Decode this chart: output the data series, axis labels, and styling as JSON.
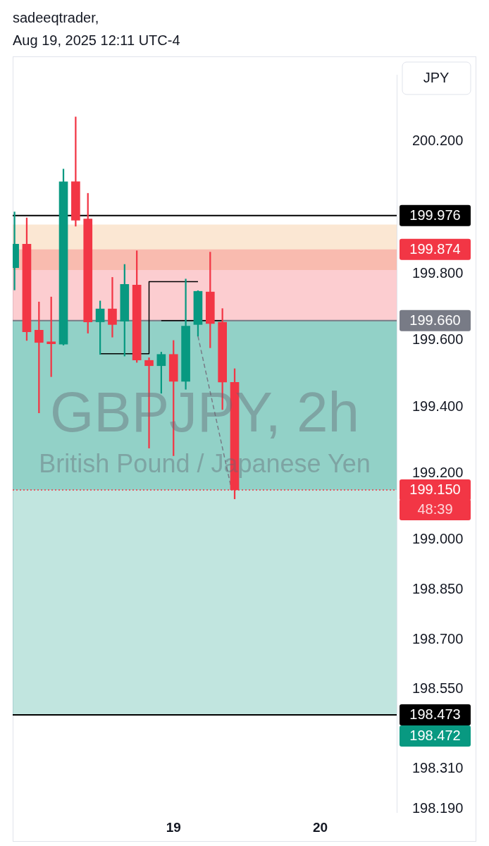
{
  "chart_data": {
    "type": "candlestick",
    "title": "GBPJPY, 2h",
    "subtitle": "British Pound / Japanese Yen",
    "ylabel": "JPY",
    "annotations": [
      "sadeeqtrader,",
      "Aug 19, 2025 12:11 UTC-4",
      "48:39"
    ],
    "marker": "none",
    "xlim": [
      "2025-08-17T21:42",
      "2025-08-20T12:30"
    ],
    "xticks": [
      {
        "value": "2025-08-19",
        "label": "19"
      },
      {
        "value": "2025-08-20",
        "label": "20"
      }
    ],
    "ylim": [
      198.18,
      200.4
    ],
    "yticks": [
      {
        "value": 200.2,
        "label": "200.200"
      },
      {
        "value": 199.8,
        "label": "199.800"
      },
      {
        "value": 199.6,
        "label": "199.600"
      },
      {
        "value": 199.4,
        "label": "199.400"
      },
      {
        "value": 199.2,
        "label": "199.200"
      },
      {
        "value": 199.0,
        "label": "199.000"
      },
      {
        "value": 198.85,
        "label": "198.850"
      },
      {
        "value": 198.7,
        "label": "198.700"
      },
      {
        "value": 198.55,
        "label": "198.550"
      },
      {
        "value": 198.31,
        "label": "198.310"
      },
      {
        "value": 198.19,
        "label": "198.190"
      }
    ],
    "series": [
      {
        "x": [
          "2025-08-17T22:00",
          "2025-08-18T00:00",
          "2025-08-18T02:00",
          "2025-08-18T04:00",
          "2025-08-18T06:00",
          "2025-08-18T08:00",
          "2025-08-18T10:00",
          "2025-08-18T12:00",
          "2025-08-18T14:00",
          "2025-08-18T16:00",
          "2025-08-18T18:00",
          "2025-08-18T20:00",
          "2025-08-18T22:00",
          "2025-08-19T00:00",
          "2025-08-19T02:00",
          "2025-08-19T04:00",
          "2025-08-19T06:00",
          "2025-08-19T08:00",
          "2025-08-19T10:00"
        ],
        "ohlc": [
          [
            199.819,
            199.987,
            199.752,
            199.89
          ],
          [
            199.89,
            199.969,
            199.6,
            199.626
          ],
          [
            199.631,
            199.716,
            199.382,
            199.594
          ],
          [
            199.596,
            199.731,
            199.491,
            199.59
          ],
          [
            199.589,
            200.116,
            199.586,
            200.078
          ],
          [
            200.078,
            200.273,
            199.944,
            199.962
          ],
          [
            199.966,
            200.043,
            199.622,
            199.656
          ],
          [
            199.656,
            199.719,
            199.558,
            199.695
          ],
          [
            199.695,
            199.79,
            199.61,
            199.648
          ],
          [
            199.658,
            199.829,
            199.553,
            199.769
          ],
          [
            199.767,
            199.87,
            199.534,
            199.541
          ],
          [
            199.54,
            199.548,
            199.276,
            199.524
          ],
          [
            199.524,
            199.565,
            199.441,
            199.558
          ],
          [
            199.558,
            199.6,
            199.253,
            199.477
          ],
          [
            199.477,
            199.785,
            199.453,
            199.643
          ],
          [
            199.648,
            199.75,
            199.613,
            199.748
          ],
          [
            199.746,
            199.866,
            199.578,
            199.651
          ],
          [
            199.655,
            199.696,
            199.392,
            199.475
          ],
          [
            199.474,
            199.515,
            199.123,
            199.15
          ]
        ],
        "colors": [
          "#089981",
          "#f23645",
          "#f23645",
          "#f23645",
          "#089981",
          "#f23645",
          "#f23645",
          "#089981",
          "#f23645",
          "#089981",
          "#f23645",
          "#f23645",
          "#089981",
          "#f23645",
          "#089981",
          "#089981",
          "#f23645",
          "#f23645",
          "#f23645"
        ]
      },
      {
        "type": "line",
        "color": "#000000",
        "x": [
          "2025-08-18T12:00",
          "2025-08-18T20:00",
          "2025-08-18T20:00",
          "2025-08-19T04:00"
        ],
        "values": [
          199.56,
          199.56,
          199.777,
          199.777
        ]
      },
      {
        "type": "line",
        "color": "#000000",
        "x": [
          "2025-08-18T22:00",
          "2025-08-19T08:00"
        ],
        "values": [
          199.66,
          199.66
        ]
      },
      {
        "type": "line",
        "color": "#787b86",
        "line_style": "dashed",
        "x": [
          "2025-08-19T04:00",
          "2025-08-19T09:30"
        ],
        "values": [
          199.613,
          199.151
        ]
      }
    ],
    "bands": [
      {
        "axis": "y",
        "from": 199.812,
        "to": 199.949,
        "color": "#f0a050"
      },
      {
        "axis": "y",
        "from": 199.66,
        "to": 199.874,
        "label": "199.874",
        "color": "#f23645"
      },
      {
        "axis": "y",
        "from": 199.66,
        "to": 198.472,
        "label": "198.472",
        "color": "#089981"
      },
      {
        "axis": "y",
        "from": 199.66,
        "to": 199.15,
        "color": "#089981"
      }
    ],
    "ref_lines": [
      {
        "axis": "y",
        "value": 199.976,
        "label": "199.976",
        "color": "#000000"
      },
      {
        "axis": "y",
        "value": 198.473,
        "label": "198.473",
        "color": "#000000"
      },
      {
        "axis": "y",
        "value": 199.66,
        "label": "199.660",
        "color": "#787b86"
      },
      {
        "axis": "y",
        "value": 199.15,
        "label": "199.150",
        "color": "#f23645",
        "line_style": "dotted"
      }
    ]
  }
}
